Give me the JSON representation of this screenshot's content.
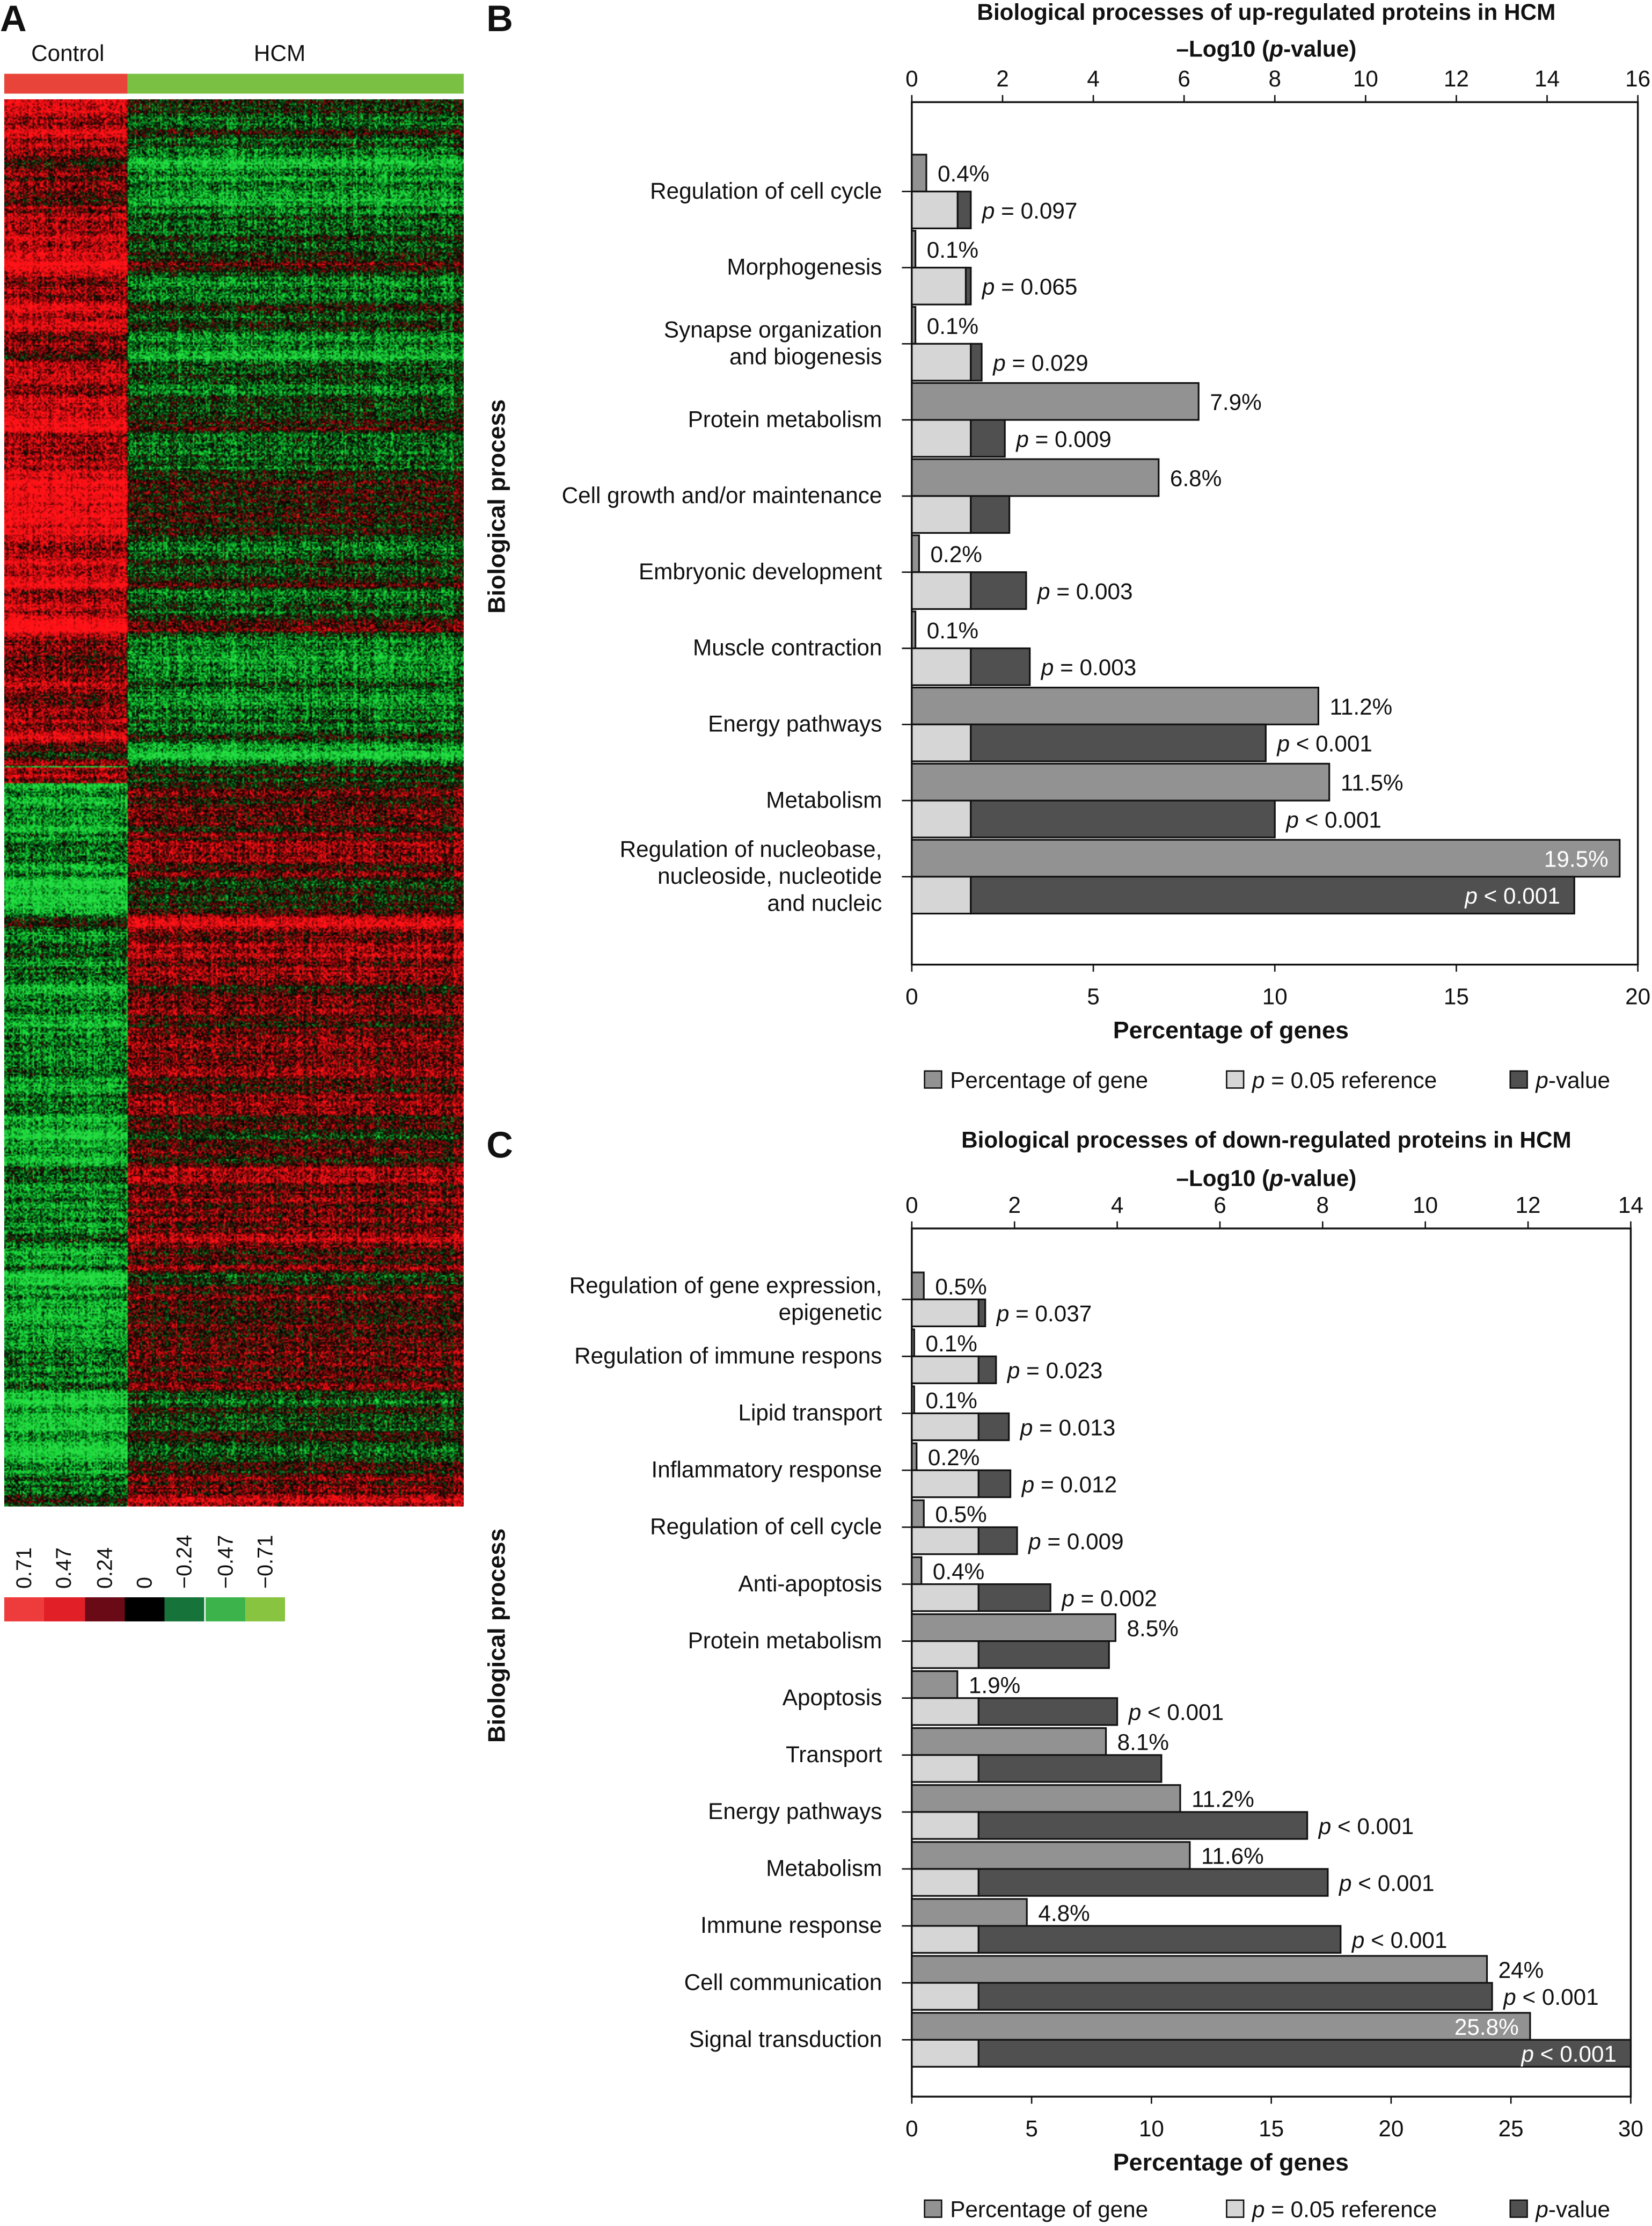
{
  "panel_a": {
    "letter": "A",
    "groups": [
      {
        "label": "Control",
        "color": "#e8443a"
      },
      {
        "label": "HCM",
        "color": "#7ac143"
      }
    ],
    "color_scale": {
      "labels": [
        "0.71",
        "0.47",
        "0.24",
        "0",
        "−0.24",
        "−0.47",
        "−0.71"
      ],
      "colors": [
        "#ee3b3b",
        "#e01f26",
        "#6a0a16",
        "#000000",
        "#16733a",
        "#3cb44b",
        "#88c440"
      ]
    }
  },
  "chart_data": [
    {
      "panel_letter": "B",
      "type": "bar",
      "orientation": "horizontal",
      "title": "Biological processes of up-regulated proteins in HCM",
      "x2label": "–Log10 (p-value)",
      "xlabel": "Percentage of genes",
      "ylabel": "Biological process",
      "xlim": [
        0,
        20
      ],
      "x2lim": [
        0,
        16
      ],
      "xticks": [
        0,
        5,
        10,
        15,
        20
      ],
      "x2ticks": [
        0,
        2,
        4,
        6,
        8,
        10,
        12,
        14,
        16
      ],
      "categories": [
        [
          "Regulation of cell cycle"
        ],
        [
          "Morphogenesis"
        ],
        [
          "Synapse organization",
          "and biogenesis"
        ],
        [
          "Protein metabolism"
        ],
        [
          "Cell growth and/or maintenance"
        ],
        [
          "Embryonic development"
        ],
        [
          "Muscle contraction"
        ],
        [
          "Energy pathways"
        ],
        [
          "Metabolism"
        ],
        [
          "Regulation of nucleobase,",
          "nucleoside, nucleotide",
          "and nucleic"
        ]
      ],
      "series": [
        {
          "name": "Percentage of gene",
          "color": "#929292",
          "axis": "percentage",
          "values": [
            0.4,
            0.1,
            0.1,
            7.9,
            6.8,
            0.2,
            0.1,
            11.2,
            11.5,
            19.5
          ]
        },
        {
          "name": "p = 0.05 reference",
          "color": "#d6d6d6",
          "axis": "-log10p",
          "values": [
            1.3,
            1.3,
            1.3,
            1.3,
            1.3,
            1.3,
            1.3,
            1.3,
            1.3,
            1.3
          ]
        },
        {
          "name": "p-value",
          "color": "#505050",
          "axis": "-log10p",
          "values": [
            1.01,
            1.19,
            1.54,
            2.05,
            2.15,
            2.52,
            2.6,
            7.8,
            8.0,
            14.6
          ]
        }
      ],
      "pct_labels": [
        "0.4%",
        "0.1%",
        "0.1%",
        "7.9%",
        "6.8%",
        "0.2%",
        "0.1%",
        "11.2%",
        "11.5%",
        "19.5%"
      ],
      "p_labels": [
        "p = 0.097",
        "p = 0.065",
        "p = 0.029",
        "p = 0.009",
        "",
        "p = 0.003",
        "p = 0.003",
        "p < 0.001",
        "p < 0.001",
        "p < 0.001"
      ],
      "legend": [
        "Percentage of gene",
        "p = 0.05 reference",
        "p-value"
      ],
      "legend_position": "bottom",
      "grid": false
    },
    {
      "panel_letter": "C",
      "type": "bar",
      "orientation": "horizontal",
      "title": "Biological processes of down-regulated proteins in HCM",
      "x2label": "–Log10 (p-value)",
      "xlabel": "Percentage of genes",
      "ylabel": "Biological process",
      "xlim": [
        0,
        30
      ],
      "x2lim": [
        0,
        14
      ],
      "xticks": [
        0,
        5,
        10,
        15,
        20,
        25,
        30
      ],
      "x2ticks": [
        0,
        2,
        4,
        6,
        8,
        10,
        12,
        14
      ],
      "categories": [
        [
          "Regulation of gene expression,",
          "epigenetic"
        ],
        [
          "Regulation of immune respons"
        ],
        [
          "Lipid transport"
        ],
        [
          "Inflammatory response"
        ],
        [
          "Regulation of cell cycle"
        ],
        [
          "Anti-apoptosis"
        ],
        [
          "Protein metabolism"
        ],
        [
          "Apoptosis"
        ],
        [
          "Transport"
        ],
        [
          "Energy pathways"
        ],
        [
          "Metabolism"
        ],
        [
          "Immune response"
        ],
        [
          "Cell communication"
        ],
        [
          "Signal transduction"
        ]
      ],
      "series": [
        {
          "name": "Percentage of gene",
          "color": "#929292",
          "axis": "percentage",
          "values": [
            0.5,
            0.1,
            0.1,
            0.2,
            0.5,
            0.4,
            8.5,
            1.9,
            8.1,
            11.2,
            11.6,
            4.8,
            24,
            25.8
          ]
        },
        {
          "name": "p = 0.05 reference",
          "color": "#d6d6d6",
          "axis": "-log10p",
          "values": [
            1.3,
            1.3,
            1.3,
            1.3,
            1.3,
            1.3,
            1.3,
            1.3,
            1.3,
            1.3,
            1.3,
            1.3,
            1.3,
            1.3
          ]
        },
        {
          "name": "p-value",
          "color": "#505050",
          "axis": "-log10p",
          "values": [
            1.43,
            1.64,
            1.89,
            1.92,
            2.05,
            2.7,
            3.84,
            4.0,
            4.86,
            7.7,
            8.1,
            8.35,
            11.3,
            14.0
          ]
        }
      ],
      "pct_labels": [
        "0.5%",
        "0.1%",
        "0.1%",
        "0.2%",
        "0.5%",
        "0.4%",
        "8.5%",
        "1.9%",
        "8.1%",
        "11.2%",
        "11.6%",
        "4.8%",
        "24%",
        "25.8%"
      ],
      "p_labels": [
        "p = 0.037",
        "p = 0.023",
        "p = 0.013",
        "p = 0.012",
        "p = 0.009",
        "p = 0.002",
        "",
        "p < 0.001",
        "",
        "p < 0.001",
        "p < 0.001",
        "p < 0.001",
        "p < 0.001",
        "p < 0.001"
      ],
      "legend": [
        "Percentage of gene",
        "p = 0.05 reference",
        "p-value"
      ],
      "legend_position": "bottom",
      "grid": false
    }
  ]
}
